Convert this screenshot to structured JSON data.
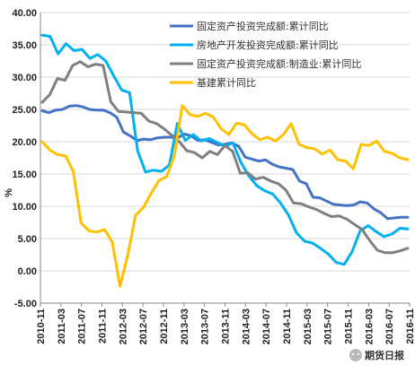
{
  "chart_data": {
    "type": "line",
    "ylabel": "%",
    "ylim": [
      -5,
      40
    ],
    "yticks": [
      "40.00",
      "35.00",
      "30.00",
      "25.00",
      "20.00",
      "15.00",
      "10.00",
      "5.00",
      "0.00",
      "-5.00"
    ],
    "xticks": [
      "2010-11",
      "2011-03",
      "2011-07",
      "2011-11",
      "2012-03",
      "2012-07",
      "2012-11",
      "2013-03",
      "2013-07",
      "2013-11",
      "2014-03",
      "2014-07",
      "2014-11",
      "2015-03",
      "2015-07",
      "2015-11",
      "2016-03",
      "2016-07",
      "2016-11"
    ],
    "grid": "horizontal",
    "legend_position": "top-right",
    "series": [
      {
        "name": "固定资产投资完成额:累计同比",
        "color": "#4472C4",
        "values": [
          24.8,
          24.5,
          24.9,
          25.0,
          25.5,
          25.6,
          25.4,
          25.0,
          24.9,
          24.9,
          24.5,
          23.8,
          21.5,
          20.9,
          20.2,
          20.4,
          20.3,
          20.6,
          20.7,
          20.7,
          20.6,
          21.2,
          20.9,
          20.2,
          20.3,
          19.9,
          19.5,
          19.6,
          19.8,
          19.3,
          17.6,
          17.3,
          17.0,
          17.2,
          16.5,
          16.1,
          15.9,
          15.7,
          13.9,
          13.5,
          11.4,
          11.3,
          10.8,
          10.3,
          10.2,
          10.1,
          10.2,
          10.7,
          10.5,
          9.6,
          9.0,
          8.1,
          8.2,
          8.3,
          8.3
        ]
      },
      {
        "name": "房地产开发投资完成额:累计同比",
        "color": "#00B0F0",
        "values": [
          36.5,
          36.3,
          33.6,
          35.2,
          34.1,
          34.3,
          32.9,
          33.5,
          32.5,
          30.2,
          28.0,
          27.6,
          18.6,
          15.3,
          15.6,
          15.4,
          16.4,
          22.8,
          20.2,
          21.1,
          20.1,
          20.5,
          19.9,
          19.3,
          19.8,
          16.8,
          14.7,
          13.2,
          12.4,
          11.9,
          10.5,
          8.6,
          5.9,
          4.6,
          4.3,
          3.5,
          2.6,
          1.3,
          1.0,
          3.0,
          6.2,
          7.0,
          6.1,
          5.3,
          5.7,
          6.6,
          6.5
        ]
      },
      {
        "name": "固定资产投资完成额:制造业:累计同比",
        "color": "#7F7F7F",
        "values": [
          26.1,
          27.3,
          29.8,
          29.5,
          31.8,
          32.4,
          31.6,
          32.0,
          31.8,
          26.2,
          24.7,
          24.6,
          24.5,
          24.4,
          23.2,
          22.8,
          22.0,
          21.0,
          20.0,
          18.6,
          18.3,
          17.5,
          18.5,
          18.0,
          19.4,
          18.5,
          15.1,
          15.2,
          14.2,
          14.5,
          13.9,
          13.5,
          12.5,
          10.5,
          10.4,
          9.9,
          9.5,
          8.9,
          8.4,
          8.5,
          8.0,
          7.2,
          6.4,
          4.7,
          3.2,
          2.8,
          2.8,
          3.1,
          3.5
        ]
      },
      {
        "name": "基建累计同比",
        "color": "#FFC000",
        "values": [
          20.0,
          18.7,
          18.0,
          17.8,
          15.4,
          7.4,
          6.2,
          6.0,
          6.4,
          4.5,
          -2.4,
          2.5,
          8.6,
          9.8,
          12.0,
          14.0,
          14.6,
          17.9,
          25.6,
          24.2,
          23.9,
          24.4,
          23.8,
          22.0,
          21.1,
          22.9,
          22.6,
          21.2,
          20.3,
          20.7,
          20.1,
          21.1,
          22.8,
          19.6,
          19.1,
          18.9,
          18.1,
          18.7,
          17.2,
          17.0,
          15.8,
          19.6,
          19.4,
          20.1,
          18.5,
          18.2,
          17.5,
          17.2
        ]
      }
    ]
  },
  "watermark": "期货日报"
}
